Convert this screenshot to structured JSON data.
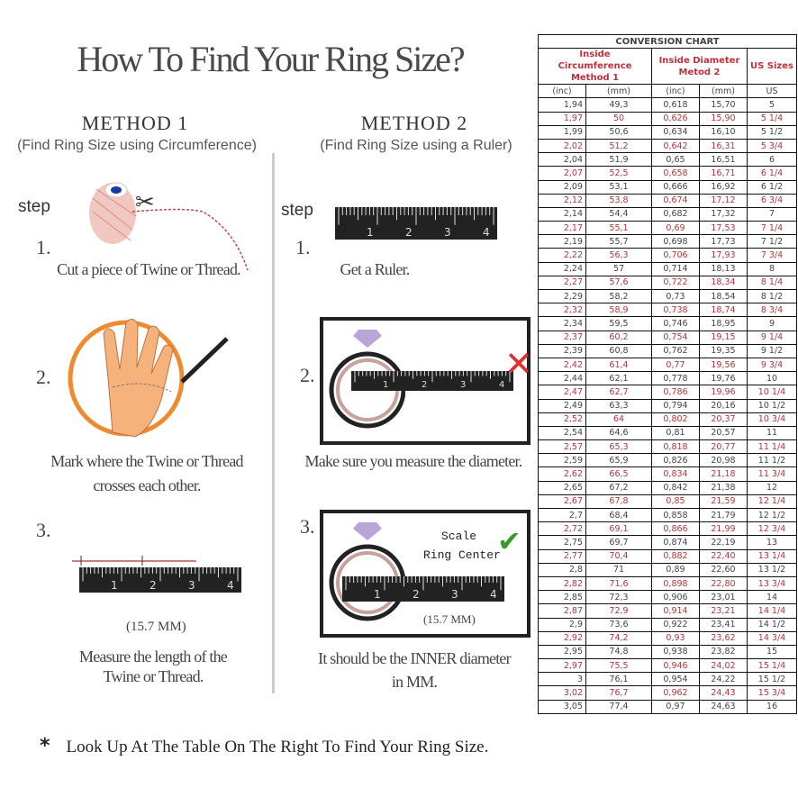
{
  "title": "How To Find Your Ring Size?",
  "method1": {
    "heading": "METHOD 1",
    "subtitle": "(Find Ring Size using Circumference)",
    "step_label": "step",
    "steps": [
      {
        "num": "1.",
        "lines": [
          "Cut a piece of  Twine or Thread."
        ]
      },
      {
        "num": "2.",
        "lines": [
          "Mark where the Twine or Thread",
          "crosses each other."
        ]
      },
      {
        "num": "3.",
        "measure": "(15.7 MM)",
        "lines": [
          "Measure the length of the",
          "Twine or Thread."
        ]
      }
    ]
  },
  "method2": {
    "heading": "METHOD 2",
    "subtitle": "(Find Ring Size using a Ruler)",
    "step_label": "step",
    "steps": [
      {
        "num": "1.",
        "lines": [
          "Get a Ruler."
        ]
      },
      {
        "num": "2.",
        "lines": [
          "Make sure you measure the diameter."
        ]
      },
      {
        "num": "3.",
        "scale_label": "Scale",
        "center_label": "Ring Center",
        "measure": "(15.7 MM)",
        "lines": [
          "It should be the INNER diameter",
          "in MM."
        ]
      }
    ]
  },
  "ruler_numbers": [
    "1",
    "2",
    "3",
    "4"
  ],
  "footer": {
    "bullet": "*",
    "text": "Look Up At The Table On The Right To Find Your Ring Size."
  },
  "colors": {
    "red_rows": "#b2343a",
    "correct_check": "#3a9a2a",
    "wrong_x": "#e03030",
    "diamond": "#b9a6d8",
    "ring": "#c9a09a"
  },
  "icons": [
    "twine-spool-icon",
    "scissors-icon",
    "hand-icon",
    "pen-icon",
    "diamond-icon",
    "ring-icon",
    "x-mark-icon",
    "check-mark-icon"
  ],
  "table": {
    "title": "CONVERSION CHART",
    "group1": [
      "Inside Circumference",
      "Method 1"
    ],
    "group2": [
      "Inside Diameter",
      "Metod 2"
    ],
    "group3": "US Sizes",
    "units": [
      "(inc)",
      "(mm)",
      "(inc)",
      "(mm)",
      "US"
    ],
    "rows": [
      [
        "1,94",
        "49,3",
        "0,618",
        "15,70",
        "5"
      ],
      [
        "1,97",
        "50",
        "0,626",
        "15,90",
        "5 1/4"
      ],
      [
        "1,99",
        "50,6",
        "0,634",
        "16,10",
        "5 1/2"
      ],
      [
        "2,02",
        "51,2",
        "0,642",
        "16,31",
        "5 3/4"
      ],
      [
        "2,04",
        "51,9",
        "0,65",
        "16,51",
        "6"
      ],
      [
        "2,07",
        "52,5",
        "0,658",
        "16,71",
        "6 1/4"
      ],
      [
        "2,09",
        "53,1",
        "0,666",
        "16,92",
        "6 1/2"
      ],
      [
        "2,12",
        "53,8",
        "0,674",
        "17,12",
        "6 3/4"
      ],
      [
        "2,14",
        "54,4",
        "0,682",
        "17,32",
        "7"
      ],
      [
        "2,17",
        "55,1",
        "0,69",
        "17,53",
        "7 1/4"
      ],
      [
        "2,19",
        "55,7",
        "0,698",
        "17,73",
        "7 1/2"
      ],
      [
        "2,22",
        "56,3",
        "0,706",
        "17,93",
        "7 3/4"
      ],
      [
        "2,24",
        "57",
        "0,714",
        "18,13",
        "8"
      ],
      [
        "2,27",
        "57,6",
        "0,722",
        "18,34",
        "8 1/4"
      ],
      [
        "2,29",
        "58,2",
        "0,73",
        "18,54",
        "8 1/2"
      ],
      [
        "2,32",
        "58,9",
        "0,738",
        "18,74",
        "8 3/4"
      ],
      [
        "2,34",
        "59,5",
        "0,746",
        "18,95",
        "9"
      ],
      [
        "2,37",
        "60,2",
        "0,754",
        "19,15",
        "9 1/4"
      ],
      [
        "2,39",
        "60,8",
        "0,762",
        "19,35",
        "9 1/2"
      ],
      [
        "2,42",
        "61,4",
        "0,77",
        "19,56",
        "9 3/4"
      ],
      [
        "2,44",
        "62,1",
        "0,778",
        "19,76",
        "10"
      ],
      [
        "2,47",
        "62,7",
        "0,786",
        "19,96",
        "10 1/4"
      ],
      [
        "2,49",
        "63,3",
        "0,794",
        "20,16",
        "10 1/2"
      ],
      [
        "2,52",
        "64",
        "0,802",
        "20,37",
        "10 3/4"
      ],
      [
        "2,54",
        "64,6",
        "0,81",
        "20,57",
        "11"
      ],
      [
        "2,57",
        "65,3",
        "0,818",
        "20,77",
        "11 1/4"
      ],
      [
        "2,59",
        "65,9",
        "0,826",
        "20,98",
        "11 1/2"
      ],
      [
        "2,62",
        "66,5",
        "0,834",
        "21,18",
        "11 3/4"
      ],
      [
        "2,65",
        "67,2",
        "0,842",
        "21,38",
        "12"
      ],
      [
        "2,67",
        "67,8",
        "0,85",
        "21,59",
        "12 1/4"
      ],
      [
        "2,7",
        "68,4",
        "0,858",
        "21,79",
        "12 1/2"
      ],
      [
        "2,72",
        "69,1",
        "0,866",
        "21,99",
        "12 3/4"
      ],
      [
        "2,75",
        "69,7",
        "0,874",
        "22,19",
        "13"
      ],
      [
        "2,77",
        "70,4",
        "0,882",
        "22,40",
        "13 1/4"
      ],
      [
        "2,8",
        "71",
        "0,89",
        "22,60",
        "13 1/2"
      ],
      [
        "2,82",
        "71,6",
        "0,898",
        "22,80",
        "13 3/4"
      ],
      [
        "2,85",
        "72,3",
        "0,906",
        "23,01",
        "14"
      ],
      [
        "2,87",
        "72,9",
        "0,914",
        "23,21",
        "14 1/4"
      ],
      [
        "2,9",
        "73,6",
        "0,922",
        "23,41",
        "14 1/2"
      ],
      [
        "2,92",
        "74,2",
        "0,93",
        "23,62",
        "14 3/4"
      ],
      [
        "2,95",
        "74,8",
        "0,938",
        "23,82",
        "15"
      ],
      [
        "2,97",
        "75,5",
        "0,946",
        "24,02",
        "15 1/4"
      ],
      [
        "3",
        "76,1",
        "0,954",
        "24,22",
        "15 1/2"
      ],
      [
        "3,02",
        "76,7",
        "0,962",
        "24,43",
        "15 3/4"
      ],
      [
        "3,05",
        "77,4",
        "0,97",
        "24,63",
        "16"
      ]
    ]
  }
}
